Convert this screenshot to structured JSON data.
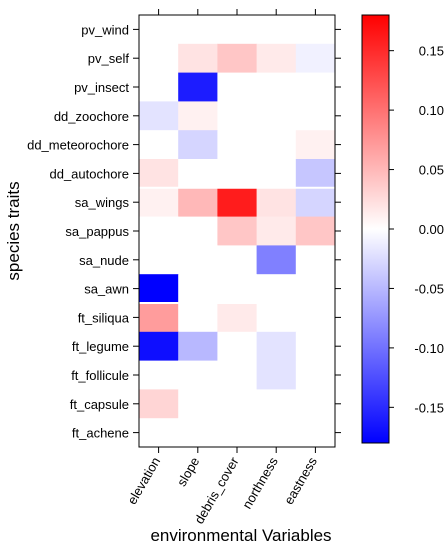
{
  "chart_data": {
    "type": "heatmap",
    "xlabel": "environmental Variables",
    "ylabel": "species traits",
    "x_categories": [
      "elevation",
      "slope",
      "debris_cover",
      "northness",
      "eastness"
    ],
    "y_categories": [
      "pv_wind",
      "pv_self",
      "pv_insect",
      "dd_zoochore",
      "dd_meteorochore",
      "dd_autochore",
      "sa_wings",
      "sa_pappus",
      "sa_nude",
      "sa_awn",
      "ft_siliqua",
      "ft_legume",
      "ft_follicule",
      "ft_capsule",
      "ft_achene"
    ],
    "values": [
      [
        0,
        0,
        0,
        0,
        0
      ],
      [
        0,
        0.02,
        0.04,
        0.015,
        -0.01
      ],
      [
        0,
        -0.16,
        0,
        0,
        0
      ],
      [
        -0.02,
        0.01,
        0,
        0,
        0
      ],
      [
        0,
        -0.03,
        0,
        0,
        0.01
      ],
      [
        0.02,
        0,
        0,
        0,
        -0.04
      ],
      [
        0.01,
        0.05,
        0.16,
        0.02,
        -0.03
      ],
      [
        0,
        0,
        0.04,
        0.015,
        0.04
      ],
      [
        0,
        0,
        0,
        -0.09,
        0
      ],
      [
        -0.18,
        0,
        0,
        0,
        0
      ],
      [
        0.07,
        0,
        0.015,
        0,
        0
      ],
      [
        -0.17,
        -0.05,
        0,
        -0.02,
        0
      ],
      [
        0,
        0,
        0,
        -0.02,
        0
      ],
      [
        0.03,
        0,
        0,
        0,
        0
      ],
      [
        0,
        0,
        0,
        0,
        0
      ]
    ],
    "group_breaks_after_rows": [
      "dd_autochore",
      "sa_awn"
    ],
    "colorbar": {
      "min": -0.18,
      "max": 0.18,
      "ticks": [
        0.15,
        0.1,
        0.05,
        0.0,
        -0.05,
        -0.1,
        -0.15
      ],
      "tick_labels": [
        "0.15",
        "0.10",
        "0.05",
        "0.00",
        "-0.05",
        "-0.10",
        "-0.15"
      ],
      "low_color": "#0000ff",
      "mid_color": "#ffffff",
      "high_color": "#ff0000"
    }
  }
}
